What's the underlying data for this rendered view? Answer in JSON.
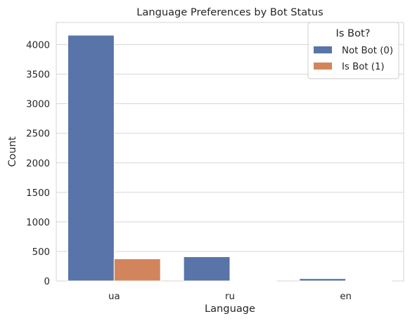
{
  "chart_data": {
    "type": "bar",
    "title": "Language Preferences by Bot Status",
    "xlabel": "Language",
    "ylabel": "Count",
    "categories": [
      "ua",
      "ru",
      "en"
    ],
    "ylim": [
      0,
      4375
    ],
    "yticks": [
      0,
      500,
      1000,
      1500,
      2000,
      2500,
      3000,
      3500,
      4000
    ],
    "grid": true,
    "legend": {
      "title": "Is Bot?",
      "placement": "top-right"
    },
    "series": [
      {
        "name": "Not Bot (0)",
        "color": "#5874a8",
        "values": [
          4160,
          410,
          40
        ]
      },
      {
        "name": "Is Bot (1)",
        "color": "#d2855c",
        "values": [
          375,
          5,
          3
        ]
      }
    ]
  }
}
